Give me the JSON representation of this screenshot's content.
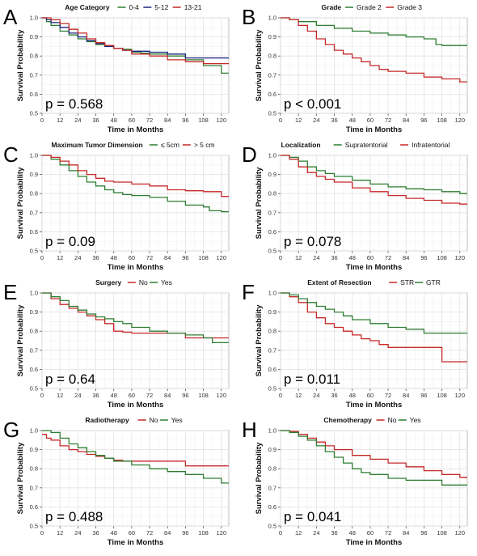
{
  "figure": {
    "x_axis_label": "Time in Months",
    "y_axis_label": "Survival Probability",
    "x_ticks": [
      0,
      12,
      24,
      36,
      48,
      60,
      72,
      84,
      96,
      108,
      120
    ],
    "y_ticks": [
      0.5,
      0.6,
      0.7,
      0.8,
      0.9,
      1.0
    ],
    "y_tick_labels": [
      "0.5",
      "0.6",
      "0.7",
      "0.8",
      "0.9",
      "1.0"
    ],
    "xlim": [
      0,
      125
    ],
    "ylim": [
      0.5,
      1.0
    ]
  },
  "chart_data": [
    {
      "type": "line",
      "panel_letter": "A",
      "legend_title": "Age Category",
      "p_value_text": "p = 0.568",
      "xlabel": "Time in Months",
      "ylabel": "Survival Probability",
      "xlim": [
        0,
        125
      ],
      "ylim": [
        0.5,
        1.0
      ],
      "series": [
        {
          "name": "0-4",
          "color": "#2e7d32",
          "x": [
            0,
            3,
            6,
            12,
            18,
            24,
            30,
            36,
            42,
            48,
            54,
            60,
            66,
            72,
            84,
            96,
            108,
            120,
            125
          ],
          "y": [
            1.0,
            0.98,
            0.96,
            0.93,
            0.91,
            0.89,
            0.875,
            0.86,
            0.85,
            0.84,
            0.835,
            0.82,
            0.815,
            0.81,
            0.8,
            0.78,
            0.75,
            0.71,
            0.71
          ]
        },
        {
          "name": "5-12",
          "color": "#1a237e",
          "x": [
            0,
            3,
            6,
            12,
            18,
            24,
            30,
            36,
            42,
            48,
            54,
            60,
            72,
            84,
            96,
            108,
            120,
            125
          ],
          "y": [
            1.0,
            0.99,
            0.975,
            0.95,
            0.92,
            0.9,
            0.88,
            0.865,
            0.85,
            0.84,
            0.83,
            0.825,
            0.82,
            0.81,
            0.79,
            0.79,
            0.79,
            0.79
          ]
        },
        {
          "name": "13-21",
          "color": "#c62828",
          "x": [
            0,
            3,
            6,
            12,
            18,
            24,
            30,
            36,
            42,
            48,
            54,
            60,
            72,
            84,
            96,
            108,
            120,
            125
          ],
          "y": [
            1.0,
            1.0,
            0.99,
            0.97,
            0.94,
            0.92,
            0.89,
            0.87,
            0.855,
            0.84,
            0.83,
            0.81,
            0.8,
            0.78,
            0.77,
            0.76,
            0.76,
            0.76
          ]
        }
      ]
    },
    {
      "type": "line",
      "panel_letter": "B",
      "legend_title": "Grade",
      "p_value_text": "p < 0.001",
      "xlabel": "Time in Months",
      "ylabel": "Survival Probability",
      "xlim": [
        0,
        125
      ],
      "ylim": [
        0.5,
        1.0
      ],
      "series": [
        {
          "name": "Grade 2",
          "color": "#2e7d32",
          "x": [
            0,
            6,
            12,
            24,
            36,
            48,
            60,
            72,
            84,
            96,
            104,
            108,
            120,
            125
          ],
          "y": [
            1.0,
            0.99,
            0.98,
            0.96,
            0.945,
            0.93,
            0.92,
            0.91,
            0.9,
            0.89,
            0.86,
            0.855,
            0.855,
            0.855
          ]
        },
        {
          "name": "Grade 3",
          "color": "#c62828",
          "x": [
            0,
            6,
            12,
            18,
            24,
            30,
            36,
            42,
            48,
            54,
            60,
            66,
            72,
            84,
            96,
            108,
            120,
            125
          ],
          "y": [
            1.0,
            0.99,
            0.96,
            0.93,
            0.89,
            0.86,
            0.83,
            0.81,
            0.79,
            0.77,
            0.75,
            0.73,
            0.72,
            0.71,
            0.69,
            0.68,
            0.665,
            0.665
          ]
        }
      ]
    },
    {
      "type": "line",
      "panel_letter": "C",
      "legend_title": "Maximum Tumor Dimension",
      "p_value_text": "p = 0.09",
      "xlabel": "Time in Months",
      "ylabel": "Survival Probability",
      "xlim": [
        0,
        125
      ],
      "ylim": [
        0.5,
        1.0
      ],
      "series": [
        {
          "name": "≤ 5cm",
          "color": "#2e7d32",
          "x": [
            0,
            6,
            12,
            18,
            24,
            30,
            36,
            42,
            48,
            54,
            60,
            72,
            84,
            96,
            108,
            112,
            120,
            125
          ],
          "y": [
            1.0,
            0.98,
            0.95,
            0.92,
            0.89,
            0.86,
            0.84,
            0.82,
            0.805,
            0.795,
            0.79,
            0.78,
            0.76,
            0.74,
            0.73,
            0.71,
            0.705,
            0.705
          ]
        },
        {
          "name": "> 5 cm",
          "color": "#c62828",
          "x": [
            0,
            6,
            12,
            18,
            24,
            30,
            36,
            42,
            48,
            60,
            72,
            84,
            96,
            108,
            120,
            125
          ],
          "y": [
            1.0,
            0.99,
            0.97,
            0.95,
            0.92,
            0.9,
            0.88,
            0.865,
            0.86,
            0.85,
            0.84,
            0.82,
            0.815,
            0.81,
            0.785,
            0.785
          ]
        }
      ]
    },
    {
      "type": "line",
      "panel_letter": "D",
      "legend_title": "Localization",
      "p_value_text": "p = 0.078",
      "xlabel": "Time in Months",
      "ylabel": "Survival Probability",
      "xlim": [
        0,
        125
      ],
      "ylim": [
        0.5,
        1.0
      ],
      "series": [
        {
          "name": "Supratentorial",
          "color": "#2e7d32",
          "x": [
            0,
            6,
            12,
            18,
            24,
            30,
            36,
            48,
            60,
            72,
            84,
            96,
            108,
            120,
            125
          ],
          "y": [
            1.0,
            0.99,
            0.97,
            0.94,
            0.92,
            0.905,
            0.89,
            0.87,
            0.85,
            0.835,
            0.825,
            0.82,
            0.81,
            0.8,
            0.8
          ]
        },
        {
          "name": "Infratentorial",
          "color": "#c62828",
          "x": [
            0,
            6,
            12,
            18,
            24,
            30,
            36,
            48,
            60,
            72,
            84,
            96,
            108,
            120,
            125
          ],
          "y": [
            1.0,
            0.98,
            0.94,
            0.91,
            0.89,
            0.875,
            0.86,
            0.83,
            0.81,
            0.79,
            0.775,
            0.765,
            0.75,
            0.745,
            0.745
          ]
        }
      ]
    },
    {
      "type": "line",
      "panel_letter": "E",
      "legend_title": "Surgery",
      "p_value_text": "p = 0.64",
      "xlabel": "Time in Months",
      "ylabel": "Survival Probability",
      "xlim": [
        0,
        125
      ],
      "ylim": [
        0.5,
        1.0
      ],
      "series": [
        {
          "name": "No",
          "color": "#c62828",
          "x": [
            0,
            6,
            12,
            18,
            24,
            30,
            36,
            42,
            48,
            54,
            60,
            72,
            84,
            96,
            108,
            120,
            125
          ],
          "y": [
            1.0,
            0.97,
            0.94,
            0.92,
            0.9,
            0.88,
            0.86,
            0.84,
            0.8,
            0.795,
            0.79,
            0.79,
            0.79,
            0.765,
            0.765,
            0.765,
            0.765
          ]
        },
        {
          "name": "Yes",
          "color": "#2e7d32",
          "x": [
            0,
            6,
            12,
            18,
            24,
            30,
            36,
            42,
            48,
            54,
            60,
            72,
            84,
            96,
            108,
            114,
            120,
            125
          ],
          "y": [
            1.0,
            0.98,
            0.96,
            0.93,
            0.91,
            0.89,
            0.875,
            0.865,
            0.85,
            0.84,
            0.82,
            0.8,
            0.79,
            0.78,
            0.765,
            0.74,
            0.74,
            0.74
          ]
        }
      ]
    },
    {
      "type": "line",
      "panel_letter": "F",
      "legend_title": "Extent of Resection",
      "p_value_text": "p = 0.011",
      "xlabel": "Time in Months",
      "ylabel": "Survival Probability",
      "xlim": [
        0,
        125
      ],
      "ylim": [
        0.5,
        1.0
      ],
      "series": [
        {
          "name": "STR",
          "color": "#c62828",
          "x": [
            0,
            6,
            12,
            18,
            24,
            30,
            36,
            42,
            48,
            54,
            60,
            66,
            72,
            84,
            96,
            108,
            120,
            125
          ],
          "y": [
            1.0,
            0.98,
            0.95,
            0.9,
            0.87,
            0.84,
            0.82,
            0.8,
            0.78,
            0.76,
            0.75,
            0.73,
            0.715,
            0.715,
            0.715,
            0.64,
            0.64,
            0.64
          ]
        },
        {
          "name": "GTR",
          "color": "#2e7d32",
          "x": [
            0,
            6,
            12,
            18,
            24,
            30,
            36,
            42,
            48,
            60,
            72,
            84,
            96,
            108,
            120,
            125
          ],
          "y": [
            1.0,
            0.99,
            0.97,
            0.95,
            0.93,
            0.915,
            0.9,
            0.88,
            0.86,
            0.84,
            0.82,
            0.81,
            0.79,
            0.79,
            0.79,
            0.79
          ]
        }
      ]
    },
    {
      "type": "line",
      "panel_letter": "G",
      "legend_title": "Radiotherapy",
      "p_value_text": "p = 0.488",
      "xlabel": "Time in Months",
      "ylabel": "Survival Probability",
      "xlim": [
        0,
        125
      ],
      "ylim": [
        0.5,
        1.0
      ],
      "series": [
        {
          "name": "No",
          "color": "#c62828",
          "x": [
            0,
            3,
            6,
            12,
            18,
            24,
            30,
            36,
            42,
            48,
            54,
            60,
            72,
            84,
            96,
            108,
            120,
            125
          ],
          "y": [
            0.98,
            0.96,
            0.95,
            0.92,
            0.9,
            0.89,
            0.875,
            0.865,
            0.855,
            0.845,
            0.84,
            0.84,
            0.84,
            0.84,
            0.815,
            0.815,
            0.815,
            0.815
          ]
        },
        {
          "name": "Yes",
          "color": "#2e7d32",
          "x": [
            0,
            6,
            12,
            18,
            24,
            30,
            36,
            42,
            48,
            60,
            72,
            84,
            96,
            108,
            120,
            125
          ],
          "y": [
            1.0,
            0.99,
            0.96,
            0.93,
            0.91,
            0.89,
            0.87,
            0.855,
            0.84,
            0.82,
            0.8,
            0.785,
            0.77,
            0.75,
            0.725,
            0.725
          ]
        }
      ]
    },
    {
      "type": "line",
      "panel_letter": "H",
      "legend_title": "Chemotherapy",
      "p_value_text": "p = 0.041",
      "xlabel": "Time in Months",
      "ylabel": "Survival Probability",
      "xlim": [
        0,
        125
      ],
      "ylim": [
        0.5,
        1.0
      ],
      "series": [
        {
          "name": "No",
          "color": "#c62828",
          "x": [
            0,
            6,
            12,
            18,
            24,
            30,
            36,
            48,
            60,
            72,
            84,
            96,
            108,
            120,
            125
          ],
          "y": [
            1.0,
            0.995,
            0.98,
            0.96,
            0.94,
            0.92,
            0.9,
            0.87,
            0.85,
            0.83,
            0.81,
            0.79,
            0.77,
            0.755,
            0.755
          ]
        },
        {
          "name": "Yes",
          "color": "#2e7d32",
          "x": [
            0,
            6,
            12,
            18,
            24,
            30,
            36,
            42,
            48,
            54,
            60,
            72,
            84,
            96,
            108,
            120,
            125
          ],
          "y": [
            1.0,
            0.99,
            0.97,
            0.95,
            0.92,
            0.89,
            0.86,
            0.83,
            0.8,
            0.78,
            0.77,
            0.75,
            0.74,
            0.74,
            0.715,
            0.715,
            0.715
          ]
        }
      ]
    }
  ]
}
